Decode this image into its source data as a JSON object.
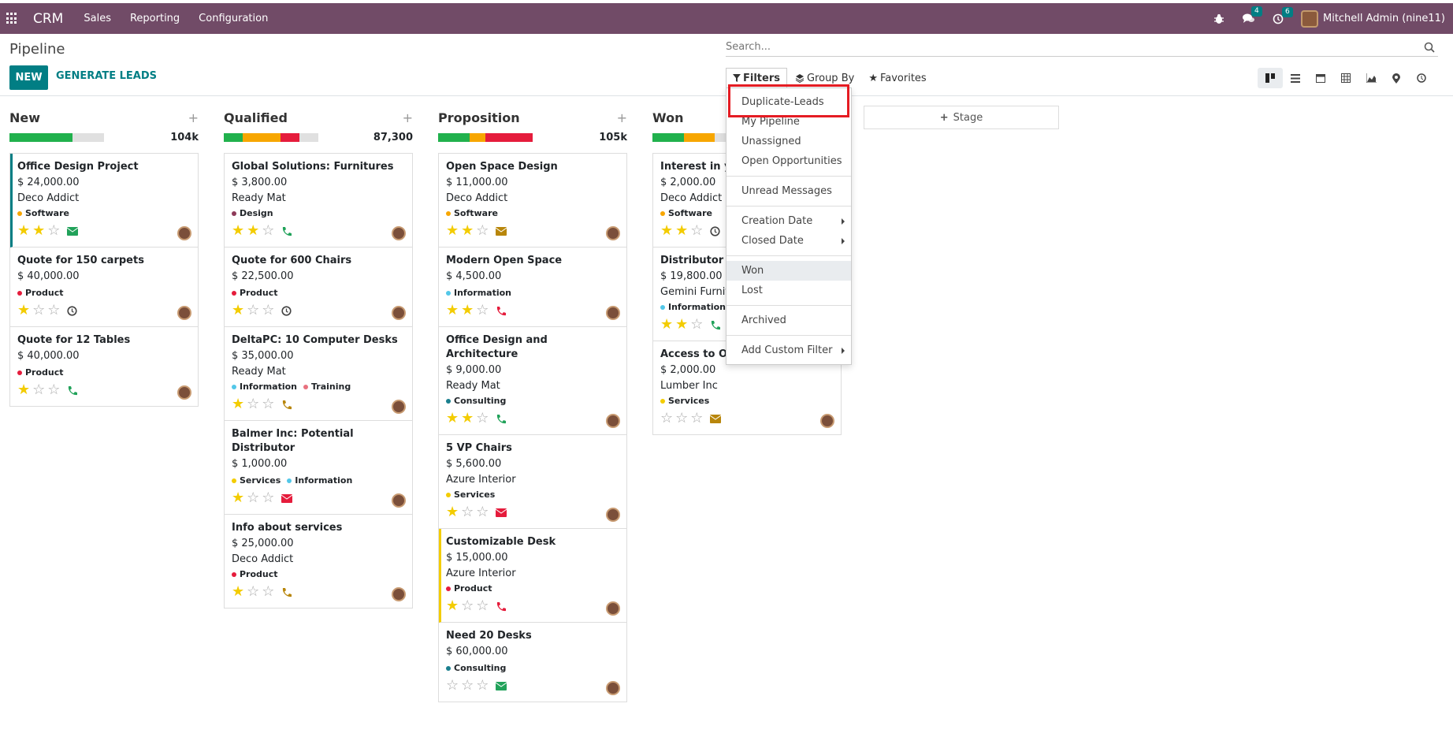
{
  "navbar": {
    "brand": "CRM",
    "menus": [
      "Sales",
      "Reporting",
      "Configuration"
    ],
    "messages_count": "4",
    "activities_count": "6",
    "user": "Mitchell Admin (nine11)"
  },
  "control": {
    "title": "Pipeline",
    "new_label": "NEW",
    "generate_label": "GENERATE LEADS",
    "search_placeholder": "Search...",
    "filters_label": "Filters",
    "groupby_label": "Group By",
    "favorites_label": "Favorites"
  },
  "dropdown": {
    "items": [
      "Duplicate-Leads",
      "My Pipeline",
      "Unassigned",
      "Open Opportunities",
      "Unread Messages",
      "Creation Date",
      "Closed Date",
      "Won",
      "Lost",
      "Archived",
      "Add Custom Filter"
    ]
  },
  "stage_add_label": "Stage",
  "colors": {
    "brand": "#714B67",
    "accent": "#017E84",
    "green": "#21b14d",
    "orange": "#f7a600",
    "red": "#e51c3c",
    "highlight": "#e51c23"
  },
  "columns": [
    {
      "title": "New",
      "total": "104k",
      "progress": [
        {
          "color": "#21b14d",
          "frac": 0.67
        },
        {
          "color": "#e0e0e0",
          "frac": 0.33
        }
      ],
      "cards": [
        {
          "title": "Office Design Project",
          "amount": "$ 24,000.00",
          "company": "Deco Addict",
          "tags": [
            {
              "name": "Software",
              "color": "#f7a600"
            }
          ],
          "stars": 2,
          "activity": "email-green"
        },
        {
          "title": "Quote for 150 carpets",
          "amount": "$ 40,000.00",
          "company": "",
          "tags": [
            {
              "name": "Product",
              "color": "#e51c3c"
            }
          ],
          "stars": 1,
          "activity": "clock"
        },
        {
          "title": "Quote for 12 Tables",
          "amount": "$ 40,000.00",
          "company": "",
          "tags": [
            {
              "name": "Product",
              "color": "#e51c3c"
            }
          ],
          "stars": 1,
          "activity": "phone-green"
        }
      ]
    },
    {
      "title": "Qualified",
      "total": "87,300",
      "progress": [
        {
          "color": "#21b14d",
          "frac": 0.2
        },
        {
          "color": "#f7a600",
          "frac": 0.4
        },
        {
          "color": "#e51c3c",
          "frac": 0.2
        },
        {
          "color": "#e0e0e0",
          "frac": 0.2
        }
      ],
      "cards": [
        {
          "title": "Global Solutions: Furnitures",
          "amount": "$ 3,800.00",
          "company": "Ready Mat",
          "tags": [
            {
              "name": "Design",
              "color": "#8e3a59"
            }
          ],
          "stars": 2,
          "activity": "phone-green"
        },
        {
          "title": "Quote for 600 Chairs",
          "amount": "$ 22,500.00",
          "company": "",
          "tags": [
            {
              "name": "Product",
              "color": "#e51c3c"
            }
          ],
          "stars": 1,
          "activity": "clock"
        },
        {
          "title": "DeltaPC: 10 Computer Desks",
          "amount": "$ 35,000.00",
          "company": "Ready Mat",
          "tags": [
            {
              "name": "Information",
              "color": "#53c7e8"
            },
            {
              "name": "Training",
              "color": "#e8717e"
            }
          ],
          "stars": 1,
          "activity": "phone-orange"
        },
        {
          "title": "Balmer Inc: Potential Distributor",
          "amount": "$ 1,000.00",
          "company": "",
          "tags": [
            {
              "name": "Services",
              "color": "#f3cc00"
            },
            {
              "name": "Information",
              "color": "#53c7e8"
            }
          ],
          "stars": 1,
          "activity": "email-red"
        },
        {
          "title": "Info about services",
          "amount": "$ 25,000.00",
          "company": "Deco Addict",
          "tags": [
            {
              "name": "Product",
              "color": "#e51c3c"
            }
          ],
          "stars": 1,
          "activity": "phone-orange"
        }
      ]
    },
    {
      "title": "Proposition",
      "total": "105k",
      "progress": [
        {
          "color": "#21b14d",
          "frac": 0.33
        },
        {
          "color": "#f7a600",
          "frac": 0.17
        },
        {
          "color": "#e51c3c",
          "frac": 0.5
        }
      ],
      "cards": [
        {
          "title": "Open Space Design",
          "amount": "$ 11,000.00",
          "company": "Deco Addict",
          "tags": [
            {
              "name": "Software",
              "color": "#f7a600"
            }
          ],
          "stars": 2,
          "activity": "email-orange"
        },
        {
          "title": "Modern Open Space",
          "amount": "$ 4,500.00",
          "company": "",
          "tags": [
            {
              "name": "Information",
              "color": "#53c7e8"
            }
          ],
          "stars": 2,
          "activity": "phone-red"
        },
        {
          "title": "Office Design and Architecture",
          "amount": "$ 9,000.00",
          "company": "Ready Mat",
          "tags": [
            {
              "name": "Consulting",
              "color": "#1a7f8e"
            }
          ],
          "stars": 2,
          "activity": "phone-green"
        },
        {
          "title": "5 VP Chairs",
          "amount": "$ 5,600.00",
          "company": "Azure Interior",
          "tags": [
            {
              "name": "Services",
              "color": "#f3cc00"
            }
          ],
          "stars": 1,
          "activity": "email-red"
        },
        {
          "title": "Customizable Desk",
          "amount": "$ 15,000.00",
          "company": "Azure Interior",
          "tags": [
            {
              "name": "Product",
              "color": "#e51c3c"
            }
          ],
          "stars": 1,
          "activity": "phone-red",
          "border": "yellow"
        },
        {
          "title": "Need 20 Desks",
          "amount": "$ 60,000.00",
          "company": "",
          "tags": [
            {
              "name": "Consulting",
              "color": "#1a7f8e"
            }
          ],
          "stars": 0,
          "activity": "email-green"
        }
      ]
    },
    {
      "title": "Won",
      "total": "",
      "progress": [
        {
          "color": "#21b14d",
          "frac": 0.33
        },
        {
          "color": "#f7a600",
          "frac": 0.33
        },
        {
          "color": "#e0e0e0",
          "frac": 0.34
        }
      ],
      "cards": [
        {
          "title": "Interest in your",
          "amount": "$ 2,000.00",
          "company": "Deco Addict",
          "tags": [
            {
              "name": "Software",
              "color": "#f7a600"
            }
          ],
          "stars": 2,
          "activity": "clock"
        },
        {
          "title": "Distributor Co",
          "amount": "$ 19,800.00",
          "company": "Gemini Furnitu",
          "tags": [
            {
              "name": "Information",
              "color": "#53c7e8"
            }
          ],
          "stars": 2,
          "activity": "phone-green"
        },
        {
          "title": "Access to Onli",
          "amount": "$ 2,000.00",
          "company": "Lumber Inc",
          "tags": [
            {
              "name": "Services",
              "color": "#f3cc00"
            }
          ],
          "stars": 0,
          "activity": "email-orange"
        }
      ]
    }
  ]
}
